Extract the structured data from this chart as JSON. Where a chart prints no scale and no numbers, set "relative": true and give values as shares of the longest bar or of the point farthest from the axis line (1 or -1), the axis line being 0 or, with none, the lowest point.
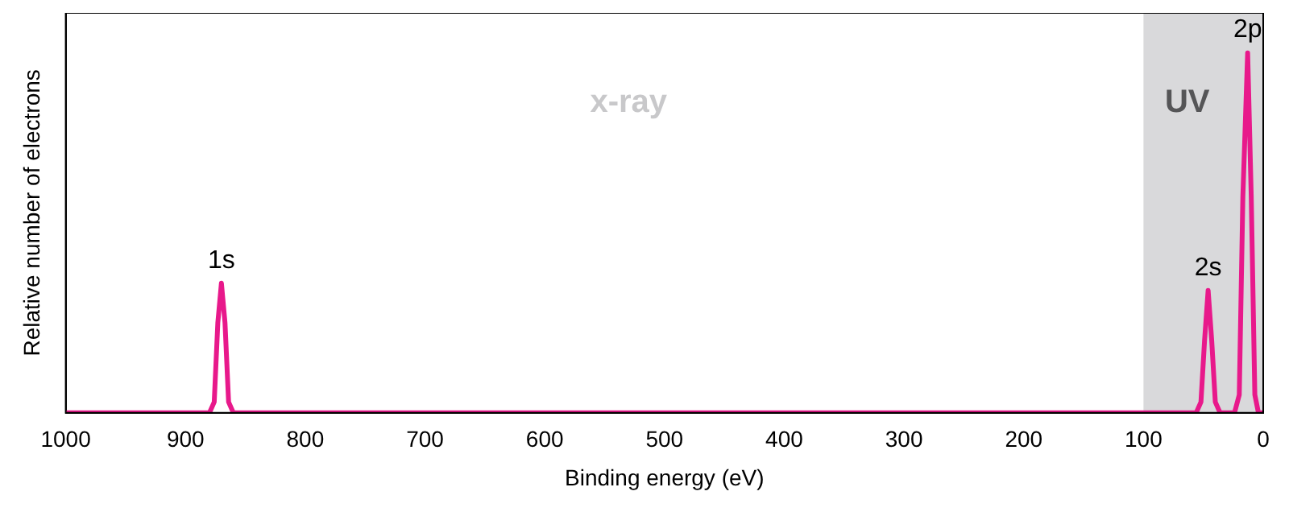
{
  "chart_data": {
    "type": "line",
    "relative": true,
    "xlabel": "Binding energy (eV)",
    "ylabel": "Relative number of electrons",
    "xlim": [
      1000,
      0
    ],
    "xticks": [
      1000,
      900,
      800,
      700,
      600,
      500,
      400,
      300,
      200,
      100,
      0
    ],
    "series": [
      {
        "color": "#e8198b",
        "x": [
          1000,
          880,
          876,
          873,
          870,
          867,
          864,
          860,
          56,
          52,
          49,
          46,
          43,
          40,
          36,
          24,
          20,
          17,
          13,
          10,
          7,
          4,
          0
        ],
        "values": [
          0,
          0,
          0.03,
          0.25,
          0.36,
          0.25,
          0.03,
          0,
          0,
          0.03,
          0.2,
          0.34,
          0.2,
          0.03,
          0,
          0,
          0.05,
          0.6,
          1,
          0.6,
          0.05,
          0,
          0
        ]
      }
    ],
    "bands": [
      {
        "axis": "x",
        "from": 100,
        "to": 0,
        "label": "UV",
        "color": "#d9d9db"
      }
    ],
    "annotations": [
      "x-ray",
      {
        "text": "1s",
        "x": 870,
        "y": 0.36
      },
      {
        "text": "2s",
        "x": 46,
        "y": 0.34
      },
      {
        "text": "2p",
        "x": 13,
        "y": 1
      }
    ],
    "grid": false,
    "legend": false,
    "marker": "none",
    "line_style": "solid"
  }
}
